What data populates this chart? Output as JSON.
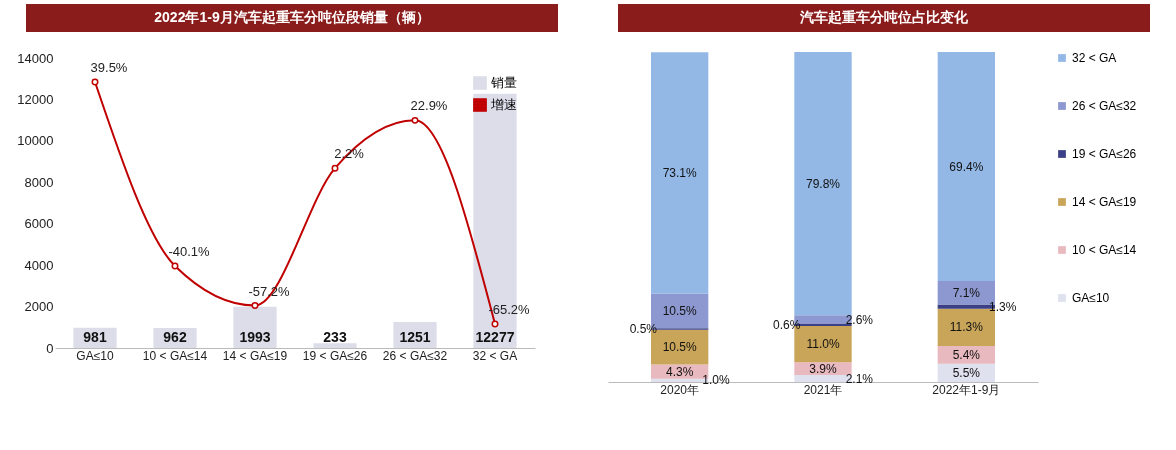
{
  "chart_data": [
    {
      "type": "bar",
      "title": "2022年1-9月汽车起重车分吨位段销量（辆）",
      "categories": [
        "GA≤10",
        "10 < GA≤14",
        "14 < GA≤19",
        "19 < GA≤26",
        "26 < GA≤32",
        "32 < GA"
      ],
      "series": [
        {
          "name": "销量",
          "type": "bar",
          "color": "#dcdde9",
          "values": [
            981,
            962,
            1993,
            233,
            1251,
            12277
          ],
          "value_labels": [
            "981",
            "962",
            "1993",
            "233",
            "1251",
            "12277"
          ]
        },
        {
          "name": "增速",
          "type": "line",
          "axis": "y2",
          "color": "#c00000",
          "values": [
            39.5,
            -40.1,
            -57.2,
            2.2,
            22.9,
            -65.2
          ],
          "value_labels": [
            "39.5%",
            "-40.1%",
            "-57.2%",
            "2.2%",
            "22.9%",
            "-65.2%"
          ]
        }
      ],
      "ylim": [
        0,
        14000
      ],
      "yticks": [
        0,
        2000,
        4000,
        6000,
        8000,
        10000,
        12000,
        14000
      ],
      "legend": "top right",
      "marker": "circle"
    },
    {
      "type": "bar",
      "title": "汽车起重车分吨位占比变化",
      "stacked": true,
      "categories": [
        "2020年",
        "2021年",
        "2022年1-9月"
      ],
      "series": [
        {
          "name": "GA≤10",
          "color": "#dfe1ef",
          "values": [
            1.0,
            2.1,
            5.5
          ],
          "value_labels": [
            "1.0%",
            "2.1%",
            "5.5%"
          ]
        },
        {
          "name": "10 < GA≤14",
          "color": "#e8b9bf",
          "values": [
            4.3,
            3.9,
            5.4
          ],
          "value_labels": [
            "4.3%",
            "3.9%",
            "5.4%"
          ]
        },
        {
          "name": "14 < GA≤19",
          "color": "#c9a55a",
          "values": [
            10.5,
            11.0,
            11.3
          ],
          "value_labels": [
            "10.5%",
            "11.0%",
            "11.3%"
          ]
        },
        {
          "name": "19 < GA≤26",
          "color": "#3a3f86",
          "values": [
            0.5,
            0.6,
            1.3
          ],
          "value_labels": [
            "0.5%",
            "0.6%",
            "1.3%"
          ]
        },
        {
          "name": "26 < GA≤32",
          "color": "#8c98cf",
          "values": [
            10.5,
            2.6,
            7.1
          ],
          "value_labels": [
            "10.5%",
            "2.6%",
            "7.1%"
          ]
        },
        {
          "name": "32 < GA",
          "color": "#93b8e6",
          "values": [
            73.1,
            79.8,
            69.4
          ],
          "value_labels": [
            "73.1%",
            "79.8%",
            "69.4%"
          ]
        }
      ],
      "legend": "right"
    }
  ]
}
